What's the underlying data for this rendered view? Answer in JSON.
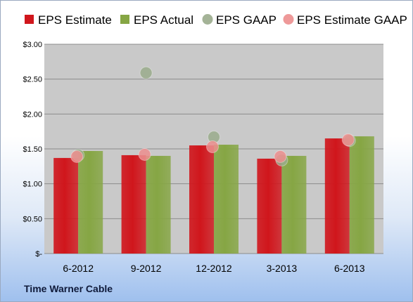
{
  "company_label": "Time Warner Cable",
  "colors": {
    "eps_estimate": "#d0161c",
    "eps_actual": "#86a644",
    "eps_gaap": "#9aab8c",
    "eps_estimate_gaap": "#ec8e8e",
    "plot_bg": "#c9c9c9",
    "grid": "#8c8c8c"
  },
  "chart_data": {
    "type": "bar",
    "categories": [
      "6-2012",
      "9-2012",
      "12-2012",
      "3-2013",
      "6-2013"
    ],
    "series": [
      {
        "name": "EPS Estimate",
        "kind": "bar",
        "color": "#d0161c",
        "values": [
          1.37,
          1.41,
          1.55,
          1.36,
          1.65
        ]
      },
      {
        "name": "EPS Actual",
        "kind": "bar",
        "color": "#86a644",
        "values": [
          1.47,
          1.4,
          1.56,
          1.4,
          1.68
        ]
      },
      {
        "name": "EPS GAAP",
        "kind": "scatter",
        "color": "#9aab8c",
        "values": [
          1.41,
          2.59,
          1.67,
          1.34,
          1.62
        ]
      },
      {
        "name": "EPS Estimate GAAP",
        "kind": "scatter",
        "color": "#ec8e8e",
        "values": [
          1.39,
          1.42,
          1.53,
          1.39,
          1.63
        ]
      }
    ],
    "yticks": [
      "$-",
      "$0.50",
      "$1.00",
      "$1.50",
      "$2.00",
      "$2.50",
      "$3.00"
    ],
    "ylim": [
      0,
      3
    ],
    "grid": true,
    "legend_position": "top"
  }
}
